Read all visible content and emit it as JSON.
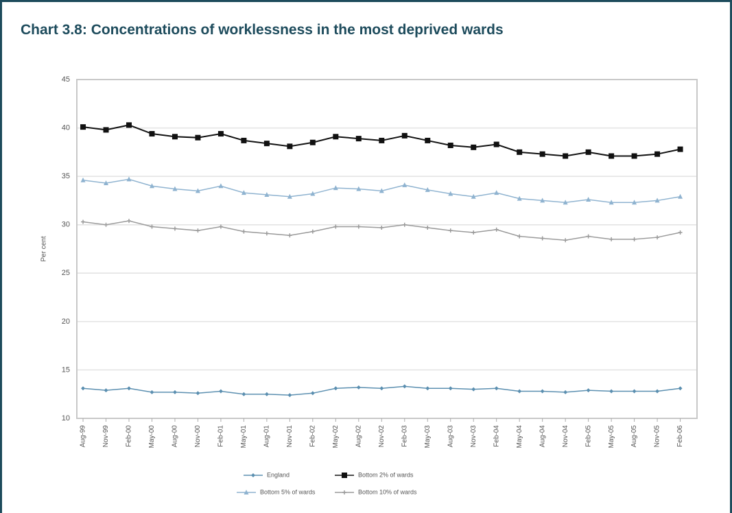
{
  "chart_data": {
    "type": "line",
    "title": "Chart 3.8: Concentrations of worklessness in the most deprived wards",
    "y_label": "Per cent",
    "categories": [
      "Aug-99",
      "Nov-99",
      "Feb-00",
      "May-00",
      "Aug-00",
      "Nov-00",
      "Feb-01",
      "May-01",
      "Aug-01",
      "Nov-01",
      "Feb-02",
      "May-02",
      "Aug-02",
      "Nov-02",
      "Feb-03",
      "May-03",
      "Aug-03",
      "Nov-03",
      "Feb-04",
      "May-04",
      "Aug-04",
      "Nov-04",
      "Feb-05",
      "May-05",
      "Aug-05",
      "Nov-05",
      "Feb-06"
    ],
    "series": [
      {
        "name": "England",
        "color": "#5b8fb0",
        "marker": "diamond",
        "values": [
          13.1,
          12.9,
          13.1,
          12.7,
          12.7,
          12.6,
          12.8,
          12.5,
          12.5,
          12.4,
          12.6,
          13.1,
          13.2,
          13.1,
          13.3,
          13.1,
          13.1,
          13.0,
          13.1,
          12.8,
          12.8,
          12.7,
          12.9,
          12.8,
          12.8,
          12.8,
          13.1
        ]
      },
      {
        "name": "Bottom 2% of wards",
        "color": "#111111",
        "marker": "square",
        "values": [
          40.1,
          39.8,
          40.3,
          39.4,
          39.1,
          39.0,
          39.4,
          38.7,
          38.4,
          38.1,
          38.5,
          39.1,
          38.9,
          38.7,
          39.2,
          38.7,
          38.2,
          38.0,
          38.3,
          37.5,
          37.3,
          37.1,
          37.5,
          37.1,
          37.1,
          37.3,
          37.8
        ]
      },
      {
        "name": "Bottom 5% of wards",
        "color": "#8fb3d0",
        "marker": "triangle",
        "values": [
          34.6,
          34.3,
          34.7,
          34.0,
          33.7,
          33.5,
          34.0,
          33.3,
          33.1,
          32.9,
          33.2,
          33.8,
          33.7,
          33.5,
          34.1,
          33.6,
          33.2,
          32.9,
          33.3,
          32.7,
          32.5,
          32.3,
          32.6,
          32.3,
          32.3,
          32.5,
          32.9
        ]
      },
      {
        "name": "Bottom 10% of wards",
        "color": "#9a9a9a",
        "marker": "cross",
        "values": [
          30.3,
          30.0,
          30.4,
          29.8,
          29.6,
          29.4,
          29.8,
          29.3,
          29.1,
          28.9,
          29.3,
          29.8,
          29.8,
          29.7,
          30.0,
          29.7,
          29.4,
          29.2,
          29.5,
          28.8,
          28.6,
          28.4,
          28.8,
          28.5,
          28.5,
          28.7,
          29.2
        ]
      }
    ],
    "ylim": [
      10,
      45
    ],
    "yticks": [
      10,
      15,
      20,
      25,
      30,
      35,
      40,
      45
    ],
    "grid": true
  }
}
